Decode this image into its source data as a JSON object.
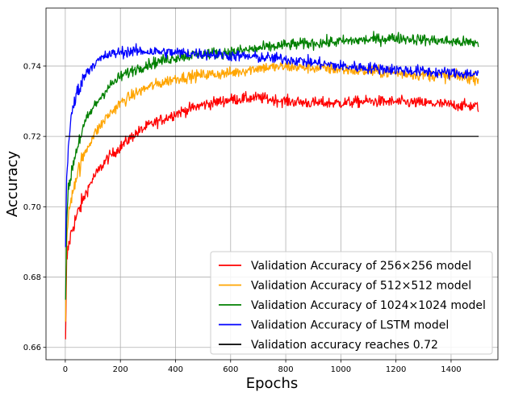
{
  "chart_data": {
    "type": "line",
    "title": "",
    "xlabel": "Epochs",
    "ylabel": "Accuracy",
    "xlim": [
      -70,
      1570
    ],
    "ylim": [
      0.6565,
      0.7565
    ],
    "xticks": [
      0,
      200,
      400,
      600,
      800,
      1000,
      1200,
      1400
    ],
    "yticks": [
      0.66,
      0.68,
      0.7,
      0.72,
      0.74
    ],
    "ytick_labels": [
      "0.66",
      "0.68",
      "0.70",
      "0.72",
      "0.74"
    ],
    "grid": true,
    "legend_position": "lower-right",
    "series": [
      {
        "name": "Validation Accuracy of 256×256 model",
        "color": "#ff0000",
        "noise": 0.0008,
        "x": [
          1,
          5,
          10,
          20,
          30,
          50,
          75,
          100,
          150,
          200,
          250,
          300,
          400,
          500,
          600,
          700,
          800,
          900,
          1000,
          1100,
          1200,
          1300,
          1400,
          1500
        ],
        "y": [
          0.661,
          0.684,
          0.688,
          0.692,
          0.695,
          0.699,
          0.704,
          0.708,
          0.7135,
          0.717,
          0.7205,
          0.723,
          0.7265,
          0.729,
          0.7305,
          0.731,
          0.73,
          0.7295,
          0.7295,
          0.73,
          0.7298,
          0.7295,
          0.729,
          0.7285
        ]
      },
      {
        "name": "Validation Accuracy of 512×512 model",
        "color": "#ffa500",
        "noise": 0.0008,
        "x": [
          1,
          5,
          10,
          20,
          30,
          50,
          75,
          100,
          150,
          200,
          250,
          300,
          400,
          500,
          600,
          700,
          800,
          900,
          1000,
          1100,
          1200,
          1300,
          1400,
          1500
        ],
        "y": [
          0.668,
          0.69,
          0.696,
          0.702,
          0.706,
          0.711,
          0.716,
          0.72,
          0.7255,
          0.7295,
          0.732,
          0.734,
          0.7365,
          0.7375,
          0.738,
          0.7395,
          0.7398,
          0.7395,
          0.739,
          0.7385,
          0.738,
          0.7375,
          0.737,
          0.7365
        ]
      },
      {
        "name": "Validation Accuracy of 1024×1024 model",
        "color": "#008000",
        "noise": 0.0008,
        "x": [
          1,
          5,
          10,
          20,
          30,
          50,
          75,
          100,
          150,
          200,
          250,
          300,
          400,
          500,
          600,
          700,
          800,
          900,
          1000,
          1100,
          1200,
          1300,
          1400,
          1500
        ],
        "y": [
          0.673,
          0.697,
          0.703,
          0.709,
          0.713,
          0.719,
          0.7245,
          0.728,
          0.7335,
          0.737,
          0.739,
          0.7405,
          0.7425,
          0.7435,
          0.744,
          0.745,
          0.746,
          0.7465,
          0.747,
          0.7475,
          0.748,
          0.7475,
          0.747,
          0.7465
        ]
      },
      {
        "name": "Validation Accuracy of LSTM model",
        "color": "#0000ff",
        "noise": 0.0008,
        "x": [
          1,
          5,
          10,
          20,
          30,
          50,
          75,
          100,
          150,
          200,
          250,
          300,
          400,
          500,
          600,
          700,
          800,
          900,
          1000,
          1100,
          1200,
          1300,
          1400,
          1500
        ],
        "y": [
          0.688,
          0.709,
          0.716,
          0.724,
          0.729,
          0.734,
          0.738,
          0.7405,
          0.743,
          0.744,
          0.7442,
          0.7442,
          0.7438,
          0.7435,
          0.743,
          0.7425,
          0.742,
          0.741,
          0.74,
          0.7395,
          0.739,
          0.7385,
          0.738,
          0.7378
        ]
      },
      {
        "name": "Validation accuracy reaches 0.72",
        "color": "#000000",
        "noise": 0,
        "x": [
          0,
          1500
        ],
        "y": [
          0.72,
          0.72
        ]
      }
    ]
  }
}
